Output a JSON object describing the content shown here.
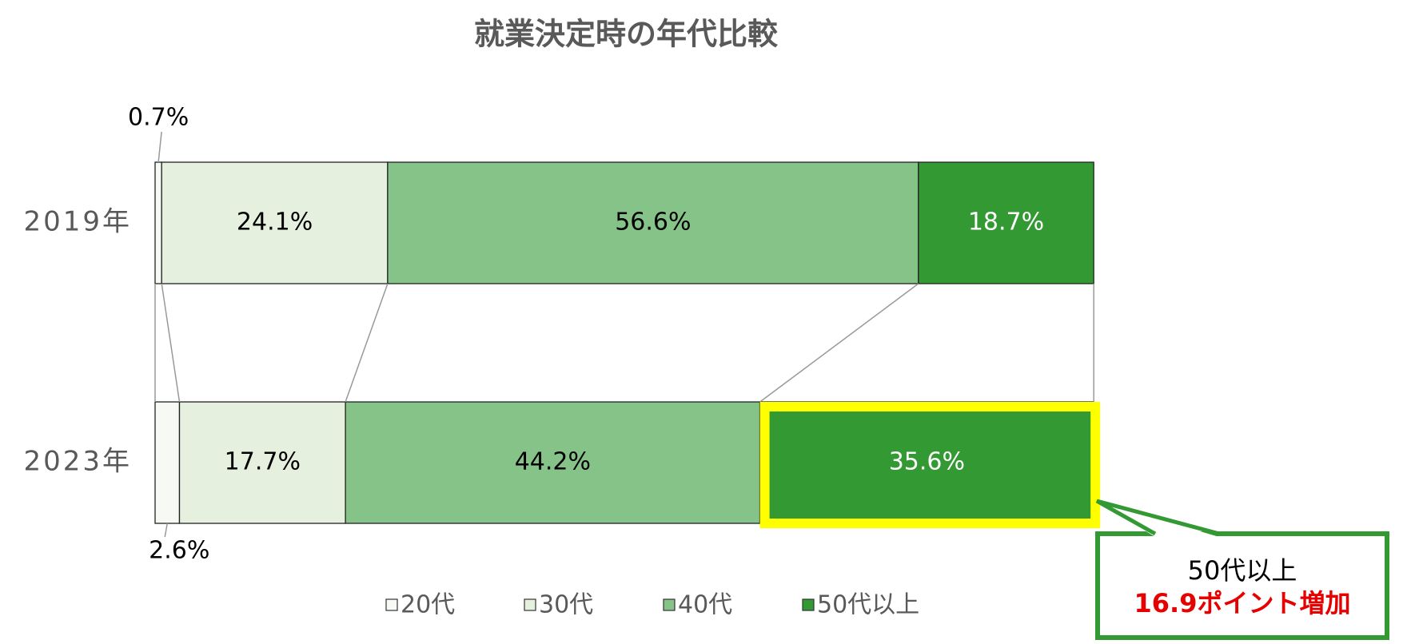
{
  "chart_data": {
    "type": "stacked-bar-horizontal",
    "title": "就業決定時の年代比較",
    "categories": [
      "2019年",
      "2023年"
    ],
    "xlim": [
      0,
      100
    ],
    "series": [
      {
        "name": "20代",
        "color": "#f7f9f4",
        "values": [
          0.7,
          2.6
        ],
        "value_labels": [
          "0.7%",
          "2.6%"
        ]
      },
      {
        "name": "30代",
        "color": "#e5f0de",
        "values": [
          24.1,
          17.7
        ],
        "value_labels": [
          "24.1%",
          "17.7%"
        ]
      },
      {
        "name": "40代",
        "color": "#85c388",
        "values": [
          56.6,
          44.2
        ],
        "value_labels": [
          "56.6%",
          "44.2%"
        ]
      },
      {
        "name": "50代以上",
        "color": "#339933",
        "values": [
          18.7,
          35.6
        ],
        "value_labels": [
          "18.7%",
          "35.6%"
        ]
      }
    ],
    "legend": "bottom",
    "annotations": [
      "50代以上",
      "16.9ポイント増加"
    ]
  }
}
